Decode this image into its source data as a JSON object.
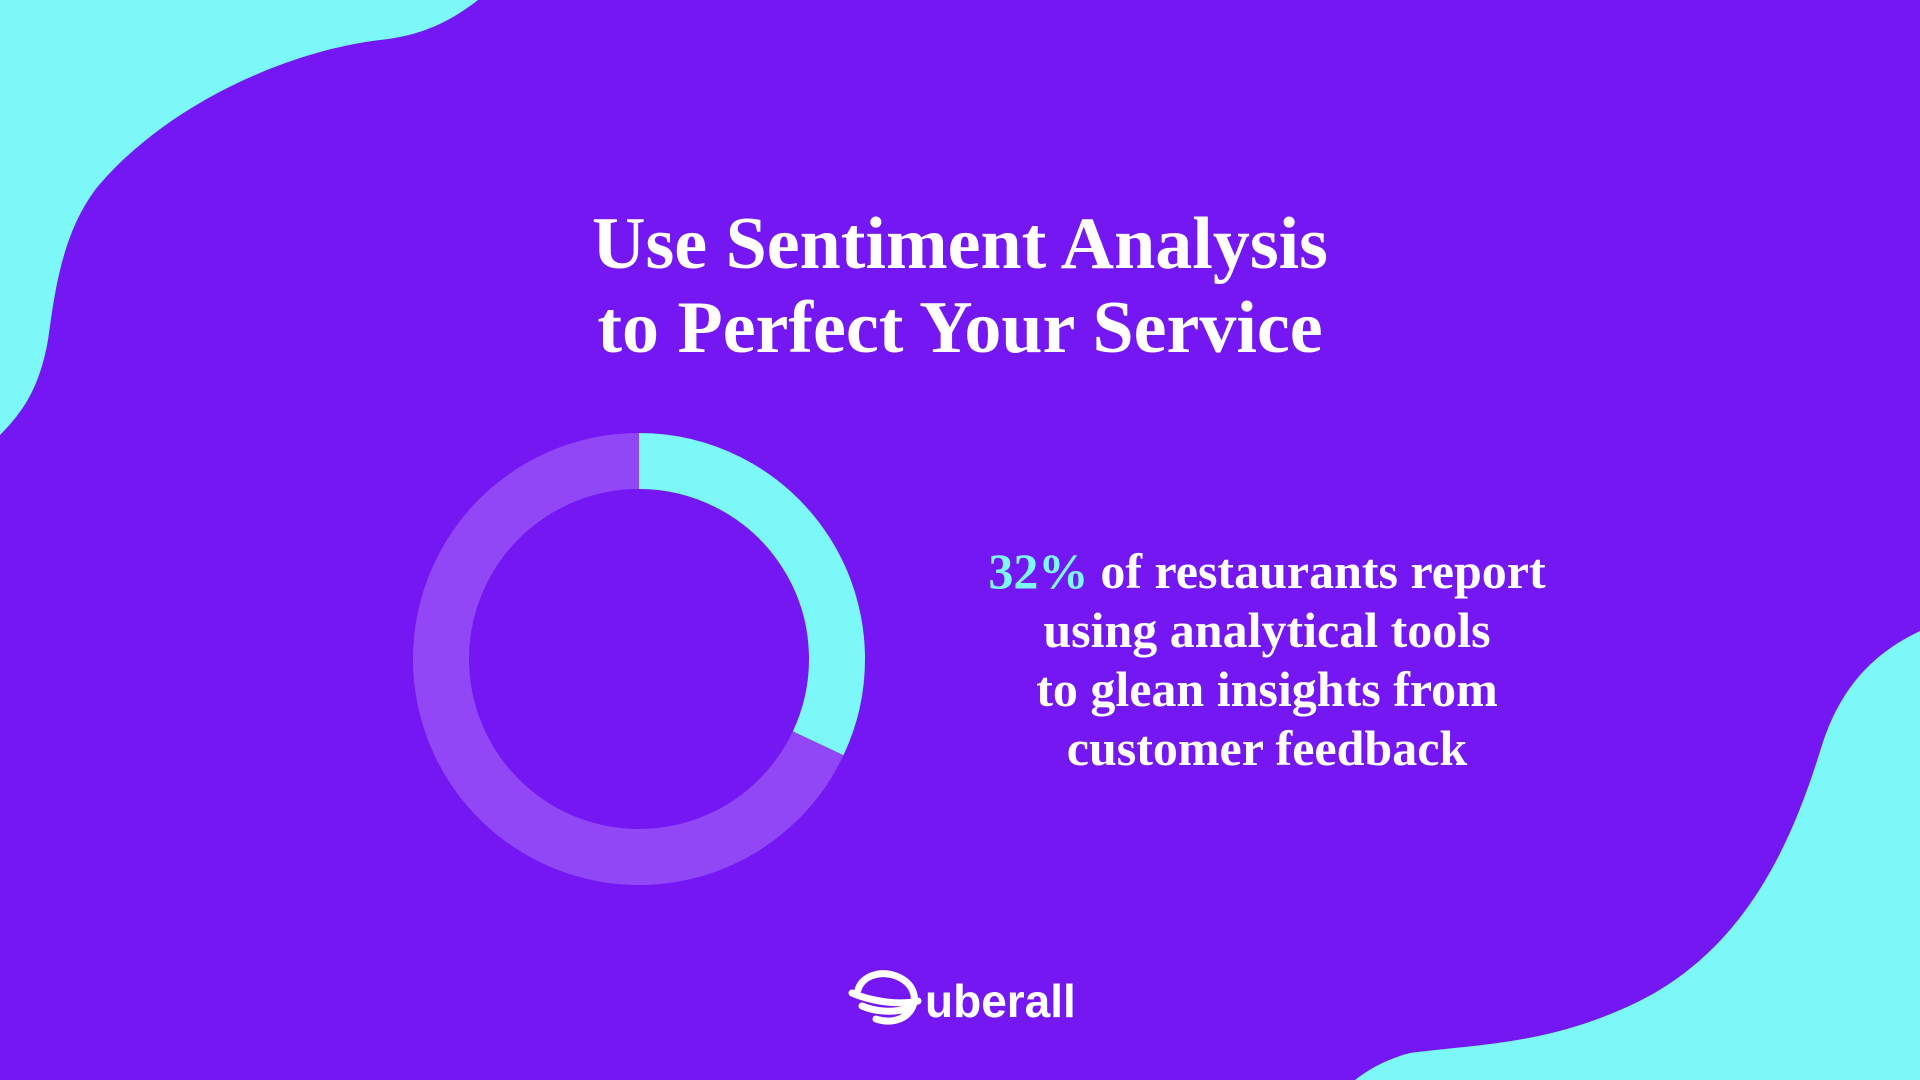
{
  "chart_data": {
    "type": "donut",
    "title_lines": [
      "Use Sentiment Analysis",
      "to Perfect Your Service"
    ],
    "values": [
      32,
      68
    ],
    "value_labels": [
      "32%",
      null
    ],
    "colors": [
      "#7bf8f7",
      "#9247f6"
    ],
    "statement_lines": [
      "of restaurants report",
      "using analytical tools",
      "to glean insights from",
      "customer feedback"
    ],
    "brand": "uberall"
  }
}
